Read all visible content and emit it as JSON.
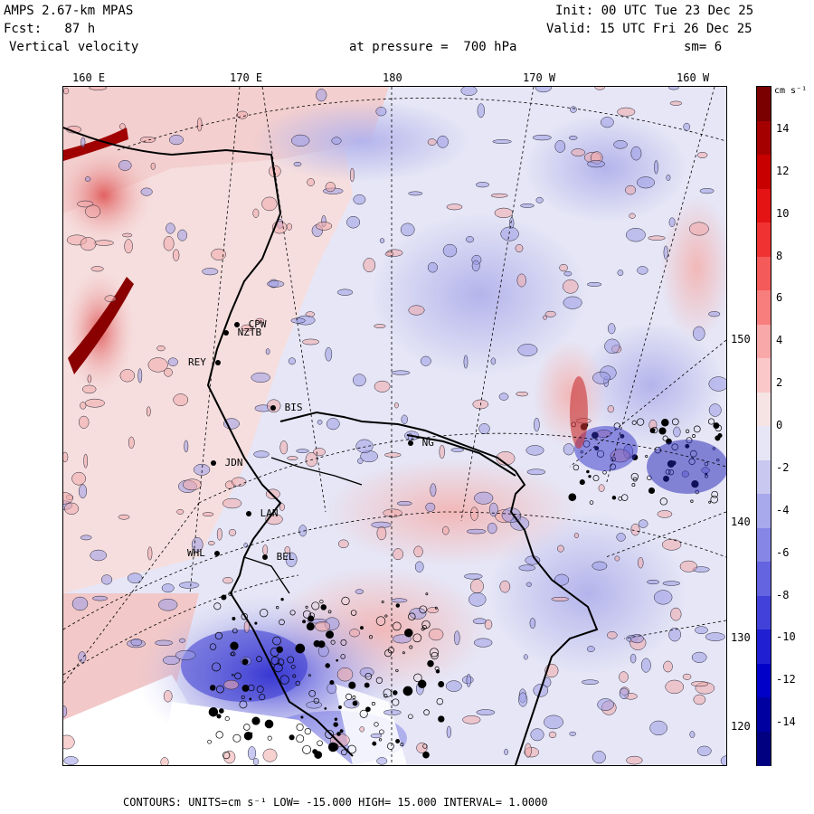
{
  "header": {
    "line1_left": "AMPS 2.67-km MPAS",
    "line2_left": "Fcst:   87 h",
    "line3_left": "Vertical velocity",
    "line1_right": "Init: 00 UTC Tue 23 Dec 25",
    "line2_right": "Valid: 15 UTC Fri 26 Dec 25",
    "pressure": "at pressure =  700 hPa",
    "smoothing": "sm= 6"
  },
  "axes": {
    "longitudes": [
      "160 E",
      "170 E",
      "180",
      "170 W",
      "160 W"
    ],
    "latitudes": [
      "150 W",
      "140 W",
      "130 W",
      "120 W"
    ]
  },
  "stations": [
    {
      "name": "CPW"
    },
    {
      "name": "NZTB"
    },
    {
      "name": "REY"
    },
    {
      "name": "BIS"
    },
    {
      "name": "JDN"
    },
    {
      "name": "LAN"
    },
    {
      "name": "WHL"
    },
    {
      "name": "BEL"
    },
    {
      "name": "NG"
    }
  ],
  "colorbar": {
    "unit": "cm s⁻¹",
    "ticks": [
      "14",
      "12",
      "10",
      "8",
      "6",
      "4",
      "2",
      "0",
      "-2",
      "-4",
      "-6",
      "-8",
      "-10",
      "-12",
      "-14"
    ],
    "colors": [
      "#7a0000",
      "#a50000",
      "#c80000",
      "#e41414",
      "#f03232",
      "#f55a5a",
      "#f87e7e",
      "#f8a8a8",
      "#fac8c8",
      "#f6e4e4",
      "#e6e6f6",
      "#c8c8f0",
      "#a8a8ec",
      "#8686e6",
      "#6464e0",
      "#4242da",
      "#2020d2",
      "#0000c8",
      "#0000a0",
      "#000080"
    ]
  },
  "footer": {
    "text": "CONTOURS:  UNITS=cm s⁻¹  LOW= -15.000      HIGH=  15.000      INTERVAL=   1.0000"
  }
}
